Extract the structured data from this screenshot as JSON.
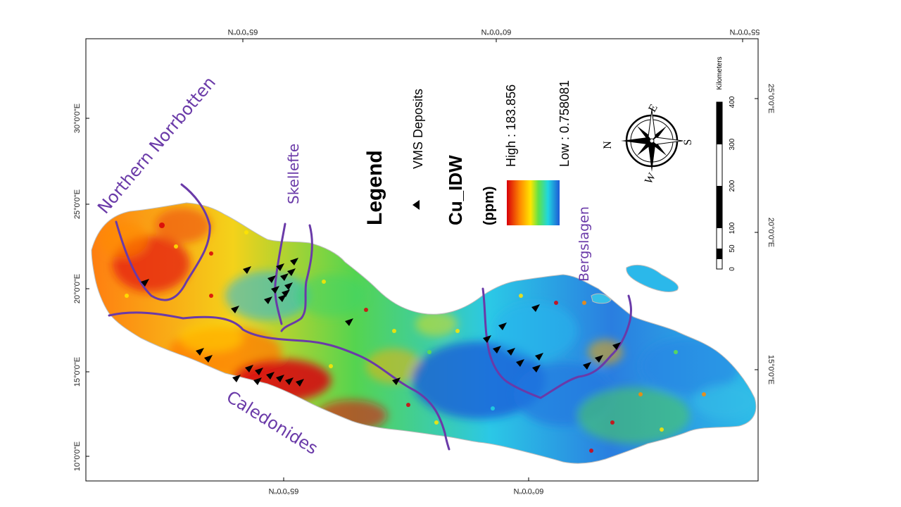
{
  "map": {
    "top_lat_labels": [
      "65°0'0\"N",
      "60°0'0\"N",
      "55°0'0\"N"
    ],
    "bottom_lat_labels": [
      "65°0'0\"N",
      "60°0'0\"N"
    ],
    "left_lon_labels": [
      "30°0'0\"E",
      "25°0'0\"E",
      "20°0'0\"E",
      "15°0'0\"E",
      "10°0'0\"E"
    ],
    "right_lon_labels": [
      "25°0'0\"E",
      "20°0'0\"E",
      "15°0'0\"E"
    ],
    "regions": {
      "northern_norrbotten": "Northern Norrbotten",
      "skellefte": "Skellefte",
      "bergslagen": "Bergslagen",
      "caledonides": "Caledonides"
    },
    "legend": {
      "title": "Legend",
      "vms_label": "VMS Deposits",
      "layer_title": "Cu_IDW",
      "unit": "(ppm)",
      "high_label": "High : 183.856",
      "low_label": "Low : 0.758081"
    },
    "compass": {
      "n": "N",
      "s": "S",
      "e": "E",
      "w": "W"
    },
    "scale_bar": {
      "unit": "Kilometers",
      "ticks": [
        "0",
        "50",
        "100",
        "200",
        "300",
        "400"
      ]
    },
    "colors": {
      "region_line": "#6a3aa8",
      "high": "#d8000a",
      "low": "#1e5bd6",
      "marker": "#000000"
    }
  }
}
